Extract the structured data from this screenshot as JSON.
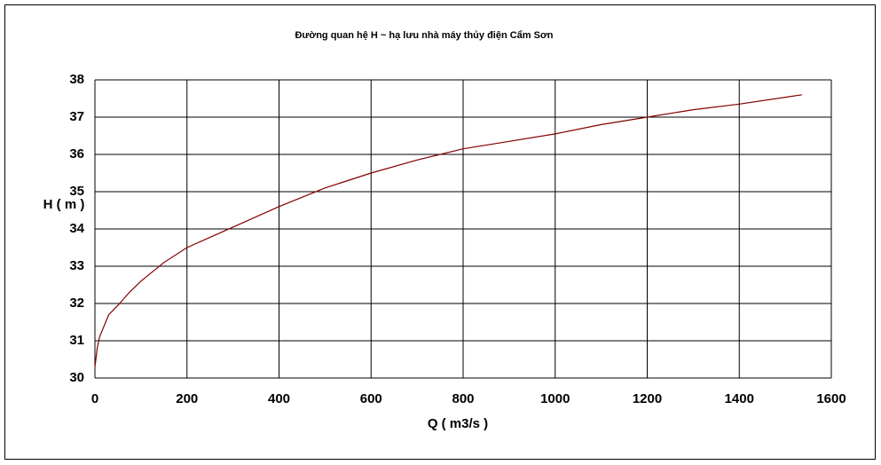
{
  "chart_data": {
    "type": "line",
    "title": "Đường quan hệ H ~ hạ lưu nhà máy thủy điện Cẩm Sơn",
    "x_label": "Q ( m3/s )",
    "y_label": "H ( m )",
    "x": [
      0,
      2,
      5,
      10,
      20,
      30,
      50,
      75,
      100,
      150,
      200,
      300,
      400,
      500,
      600,
      700,
      800,
      900,
      1000,
      1100,
      1200,
      1300,
      1400,
      1536
    ],
    "series": [
      {
        "name": "H",
        "color": "#800000",
        "values": [
          30.3,
          30.5,
          30.8,
          31.1,
          31.4,
          31.7,
          31.95,
          32.3,
          32.6,
          33.1,
          33.5,
          34.05,
          34.6,
          35.1,
          35.5,
          35.85,
          36.15,
          36.35,
          36.55,
          36.8,
          37.0,
          37.2,
          37.35,
          37.6
        ]
      }
    ],
    "xlim": [
      0,
      1600
    ],
    "xticks": [
      0,
      200,
      400,
      600,
      800,
      1000,
      1200,
      1400,
      1600
    ],
    "ylim": [
      30,
      38
    ],
    "yticks": [
      30,
      31,
      32,
      33,
      34,
      35,
      36,
      37,
      38
    ],
    "grid": true
  }
}
